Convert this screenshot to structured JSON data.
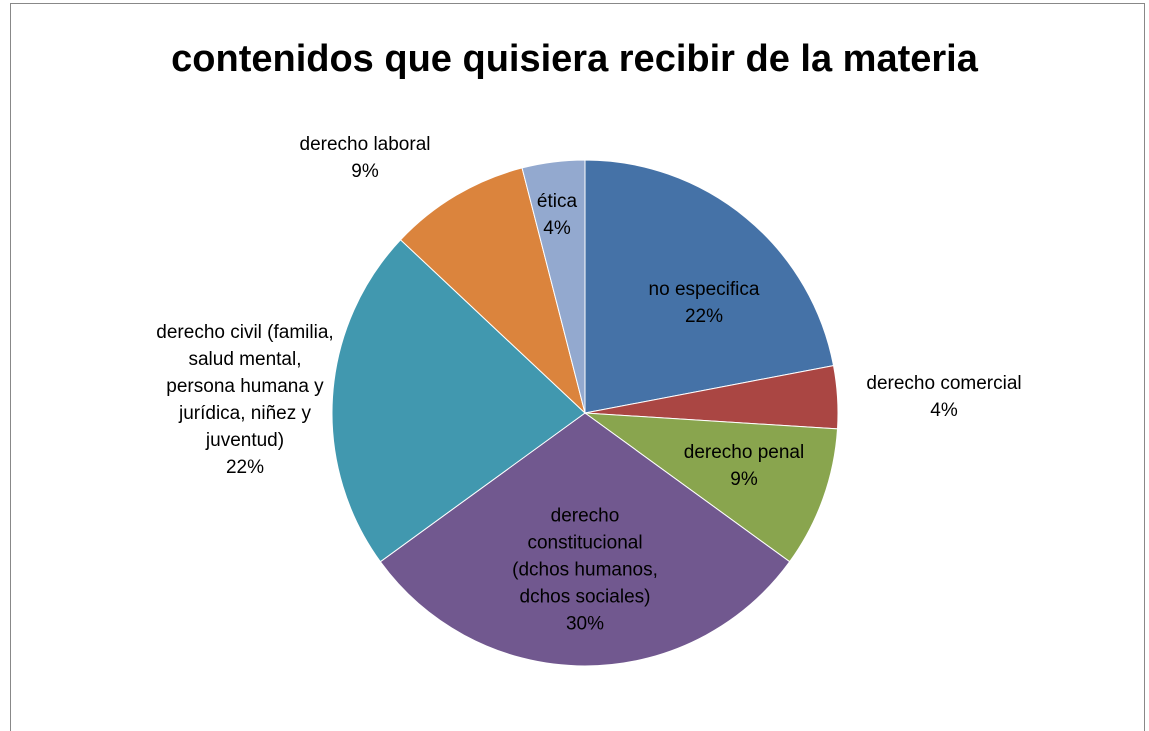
{
  "chart_data": {
    "type": "pie",
    "title": "contenidos que quisiera recibir de la materia",
    "categories": [
      "no especifica",
      "derecho comercial",
      "derecho penal",
      "derecho constitucional (dchos humanos, dchos sociales)",
      "derecho civil (familia, salud mental, persona humana y jurídica, niñez y juventud)",
      "derecho laboral",
      "ética"
    ],
    "values": [
      22,
      4,
      9,
      30,
      22,
      9,
      4
    ],
    "value_labels": [
      "22%",
      "4%",
      "9%",
      "30%",
      "22%",
      "9%",
      "4%"
    ],
    "colors": [
      "#4572a7",
      "#aa4643",
      "#89a54e",
      "#71588f",
      "#4198af",
      "#db843d",
      "#93a9cf"
    ]
  }
}
